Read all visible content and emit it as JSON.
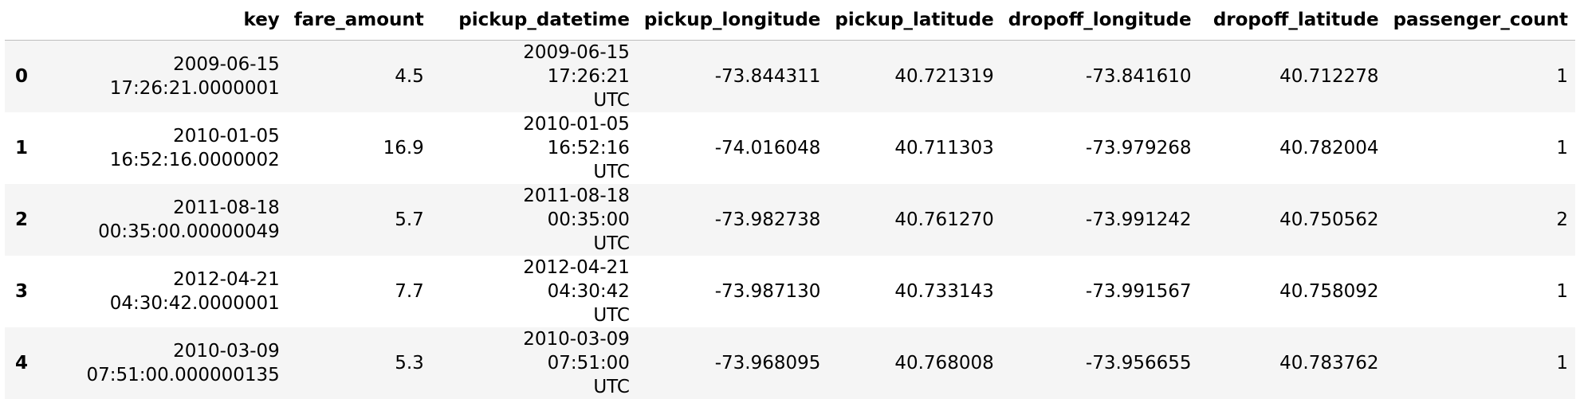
{
  "columns": [
    "",
    "key",
    "fare_amount",
    "pickup_datetime",
    "pickup_longitude",
    "pickup_latitude",
    "dropoff_longitude",
    "dropoff_latitude",
    "passenger_count"
  ],
  "rows": [
    {
      "index": "0",
      "key_date": "2009-06-15",
      "key_time": "17:26:21.0000001",
      "fare_amount": "4.5",
      "pickup_datetime_main": "2009-06-15 17:26:21",
      "pickup_datetime_tz": "UTC",
      "pickup_longitude": "-73.844311",
      "pickup_latitude": "40.721319",
      "dropoff_longitude": "-73.841610",
      "dropoff_latitude": "40.712278",
      "passenger_count": "1"
    },
    {
      "index": "1",
      "key_date": "2010-01-05",
      "key_time": "16:52:16.0000002",
      "fare_amount": "16.9",
      "pickup_datetime_main": "2010-01-05 16:52:16",
      "pickup_datetime_tz": "UTC",
      "pickup_longitude": "-74.016048",
      "pickup_latitude": "40.711303",
      "dropoff_longitude": "-73.979268",
      "dropoff_latitude": "40.782004",
      "passenger_count": "1"
    },
    {
      "index": "2",
      "key_date": "2011-08-18",
      "key_time": "00:35:00.00000049",
      "fare_amount": "5.7",
      "pickup_datetime_main": "2011-08-18 00:35:00",
      "pickup_datetime_tz": "UTC",
      "pickup_longitude": "-73.982738",
      "pickup_latitude": "40.761270",
      "dropoff_longitude": "-73.991242",
      "dropoff_latitude": "40.750562",
      "passenger_count": "2"
    },
    {
      "index": "3",
      "key_date": "2012-04-21",
      "key_time": "04:30:42.0000001",
      "fare_amount": "7.7",
      "pickup_datetime_main": "2012-04-21 04:30:42",
      "pickup_datetime_tz": "UTC",
      "pickup_longitude": "-73.987130",
      "pickup_latitude": "40.733143",
      "dropoff_longitude": "-73.991567",
      "dropoff_latitude": "40.758092",
      "passenger_count": "1"
    },
    {
      "index": "4",
      "key_date": "2010-03-09",
      "key_time": "07:51:00.000000135",
      "fare_amount": "5.3",
      "pickup_datetime_main": "2010-03-09 07:51:00",
      "pickup_datetime_tz": "UTC",
      "pickup_longitude": "-73.968095",
      "pickup_latitude": "40.768008",
      "dropoff_longitude": "-73.956655",
      "dropoff_latitude": "40.783762",
      "passenger_count": "1"
    }
  ],
  "colors": {
    "stripe": "#f5f5f5",
    "header_border": "#bdbdbd",
    "text": "#000000"
  }
}
